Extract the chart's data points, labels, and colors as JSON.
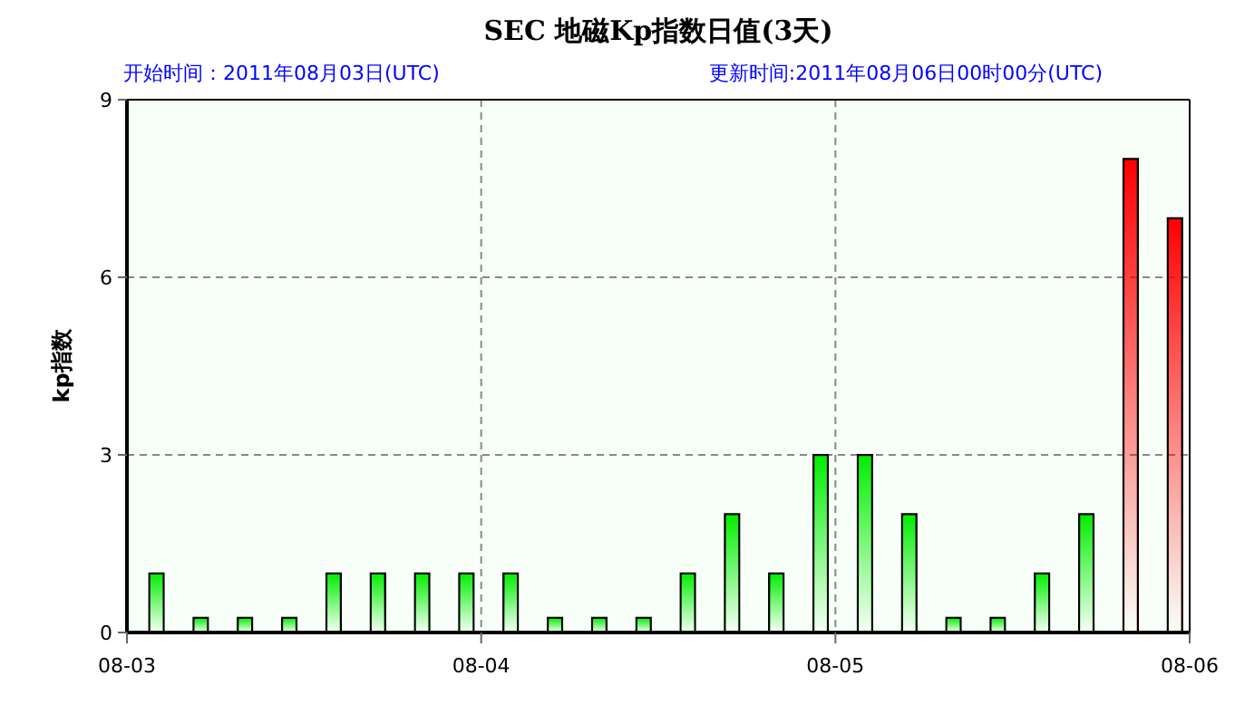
{
  "chart_data": {
    "type": "bar",
    "title": "SEC 地磁Kp指数日值(3天)",
    "subtitle": "开始时间：2011年08月03日(UTC)",
    "annotations": [
      "更新时间:2011年08月06日00时00分(UTC)"
    ],
    "ylabel": "kp指数",
    "x": [
      "2011-08-03T02:00",
      "2011-08-03T05:00",
      "2011-08-03T08:00",
      "2011-08-03T11:00",
      "2011-08-03T14:00",
      "2011-08-03T17:00",
      "2011-08-03T20:00",
      "2011-08-03T23:00",
      "2011-08-04T02:00",
      "2011-08-04T05:00",
      "2011-08-04T08:00",
      "2011-08-04T11:00",
      "2011-08-04T14:00",
      "2011-08-04T17:00",
      "2011-08-04T20:00",
      "2011-08-04T23:00",
      "2011-08-05T02:00",
      "2011-08-05T05:00",
      "2011-08-05T08:00",
      "2011-08-05T11:00",
      "2011-08-05T14:00",
      "2011-08-05T17:00",
      "2011-08-05T20:00",
      "2011-08-05T23:00"
    ],
    "values": [
      1,
      0.25,
      0.25,
      0.25,
      1,
      1,
      1,
      1,
      1,
      0.25,
      0.25,
      0.25,
      1,
      2,
      1,
      3,
      3,
      2,
      0.25,
      0.25,
      1,
      2,
      8,
      7
    ],
    "colors": [
      "#00ee00",
      "#00ee00",
      "#00ee00",
      "#00ee00",
      "#00ee00",
      "#00ee00",
      "#00ee00",
      "#00ee00",
      "#00ee00",
      "#00ee00",
      "#00ee00",
      "#00ee00",
      "#00ee00",
      "#00ee00",
      "#00ee00",
      "#00ee00",
      "#00ee00",
      "#00ee00",
      "#00ee00",
      "#00ee00",
      "#00ee00",
      "#00ee00",
      "#ff0000",
      "#ff0000"
    ],
    "xlim": [
      "2011-08-03",
      "2011-08-06"
    ],
    "xticks": [
      {
        "value": "2011-08-03",
        "label": "08-03"
      },
      {
        "value": "2011-08-04",
        "label": "08-04"
      },
      {
        "value": "2011-08-05",
        "label": "08-05"
      },
      {
        "value": "2011-08-06",
        "label": "08-06"
      }
    ],
    "ylim": [
      0,
      9
    ],
    "yticks": [
      0,
      3,
      6,
      9
    ],
    "grid": true
  }
}
